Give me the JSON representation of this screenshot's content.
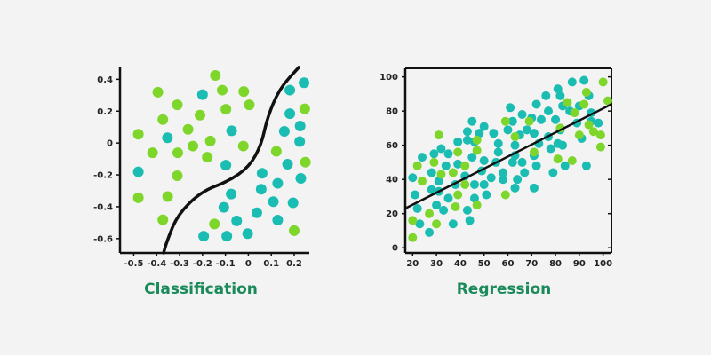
{
  "colors": {
    "teal": "#1bbdb3",
    "green": "#7ed62a",
    "line": "#111111",
    "caption": "#1a8a5a"
  },
  "chart_data": [
    {
      "type": "scatter",
      "title": "Classification",
      "xlim": [
        -0.56,
        0.266
      ],
      "ylim": [
        -0.69,
        0.48
      ],
      "xticks": [
        -0.5,
        -0.4,
        -0.3,
        -0.2,
        -0.1,
        0,
        0.1,
        0.2
      ],
      "xtick_labels": [
        "-0.5",
        "-0.4",
        "-0.3",
        "-0.2",
        "-0.1",
        "0",
        "0.1",
        "0.2"
      ],
      "yticks": [
        0.4,
        0.2,
        0,
        -0.2,
        -0.4,
        -0.6
      ],
      "ytick_labels": [
        "0.4",
        "0.2",
        "0",
        "-0.2",
        "-0.4",
        "-0.6"
      ],
      "grid": false,
      "series": [
        {
          "color": "green",
          "points": [
            [
              -0.144,
              0.424
            ],
            [
              -0.395,
              0.319
            ],
            [
              -0.114,
              0.332
            ],
            [
              -0.02,
              0.323
            ],
            [
              -0.31,
              0.24
            ],
            [
              0.004,
              0.24
            ],
            [
              -0.098,
              0.212
            ],
            [
              -0.211,
              0.175
            ],
            [
              -0.373,
              0.147
            ],
            [
              -0.48,
              0.055
            ],
            [
              -0.263,
              0.086
            ],
            [
              -0.166,
              0.013
            ],
            [
              -0.242,
              -0.019
            ],
            [
              -0.022,
              -0.019
            ],
            [
              -0.418,
              -0.061
            ],
            [
              -0.308,
              -0.061
            ],
            [
              -0.179,
              -0.089
            ],
            [
              -0.31,
              -0.205
            ],
            [
              -0.48,
              -0.344
            ],
            [
              -0.352,
              -0.336
            ],
            [
              -0.373,
              -0.482
            ],
            [
              -0.148,
              -0.508
            ],
            [
              0.122,
              -0.052
            ],
            [
              0.246,
              0.215
            ],
            [
              0.249,
              -0.12
            ],
            [
              0.2,
              -0.55
            ]
          ]
        },
        {
          "color": "teal",
          "points": [
            [
              -0.2,
              0.304
            ],
            [
              -0.353,
              0.033
            ],
            [
              -0.073,
              0.077
            ],
            [
              -0.098,
              -0.139
            ],
            [
              -0.48,
              -0.181
            ],
            [
              0.243,
              0.378
            ],
            [
              0.181,
              0.332
            ],
            [
              0.181,
              0.184
            ],
            [
              0.226,
              0.107
            ],
            [
              0.157,
              0.073
            ],
            [
              0.224,
              0.009
            ],
            [
              0.171,
              -0.133
            ],
            [
              0.229,
              -0.222
            ],
            [
              0.06,
              -0.19
            ],
            [
              0.128,
              -0.253
            ],
            [
              0.056,
              -0.29
            ],
            [
              -0.075,
              -0.32
            ],
            [
              0.109,
              -0.368
            ],
            [
              0.195,
              -0.375
            ],
            [
              -0.107,
              -0.404
            ],
            [
              0.037,
              -0.438
            ],
            [
              0.128,
              -0.484
            ],
            [
              -0.051,
              -0.489
            ],
            [
              -0.003,
              -0.569
            ],
            [
              -0.094,
              -0.585
            ],
            [
              -0.195,
              -0.585
            ]
          ]
        }
      ],
      "decision_boundary": [
        [
          -0.37,
          -0.69
        ],
        [
          -0.356,
          -0.62
        ],
        [
          -0.31,
          -0.453
        ],
        [
          -0.206,
          -0.305
        ],
        [
          -0.088,
          -0.241
        ],
        [
          0.004,
          -0.149
        ],
        [
          0.057,
          -0.01
        ],
        [
          0.082,
          0.156
        ],
        [
          0.135,
          0.34
        ],
        [
          0.22,
          0.475
        ]
      ]
    },
    {
      "type": "scatter",
      "title": "Regression",
      "xlim": [
        16.9,
        103.5
      ],
      "ylim": [
        -3,
        105
      ],
      "xticks": [
        20,
        30,
        40,
        50,
        60,
        70,
        80,
        90,
        100
      ],
      "xtick_labels": [
        "20",
        "30",
        "40",
        "50",
        "60",
        "70",
        "80",
        "90",
        "100"
      ],
      "yticks": [
        0,
        20,
        40,
        60,
        80,
        100
      ],
      "ytick_labels": [
        "0",
        "20",
        "40",
        "60",
        "80",
        "100"
      ],
      "grid": false,
      "series": [
        {
          "color": "teal",
          "points": [
            [
              20,
              41
            ],
            [
              21,
              31
            ],
            [
              22,
              23
            ],
            [
              23,
              14
            ],
            [
              24,
              53
            ],
            [
              27,
              9
            ],
            [
              28,
              44
            ],
            [
              28,
              34
            ],
            [
              29,
              55
            ],
            [
              30,
              25
            ],
            [
              31,
              39
            ],
            [
              31,
              33
            ],
            [
              32,
              58
            ],
            [
              33,
              22
            ],
            [
              34,
              48
            ],
            [
              35,
              29
            ],
            [
              35,
              55
            ],
            [
              37,
              14
            ],
            [
              38,
              37
            ],
            [
              39,
              49
            ],
            [
              39,
              62
            ],
            [
              42,
              42
            ],
            [
              43,
              22
            ],
            [
              43,
              63
            ],
            [
              43,
              68
            ],
            [
              44,
              16
            ],
            [
              45,
              74
            ],
            [
              45,
              53
            ],
            [
              46,
              37
            ],
            [
              46,
              29
            ],
            [
              46,
              62
            ],
            [
              48,
              67
            ],
            [
              49,
              45
            ],
            [
              50,
              51
            ],
            [
              50,
              37
            ],
            [
              50,
              71
            ],
            [
              51,
              31
            ],
            [
              53,
              41
            ],
            [
              54,
              67
            ],
            [
              55,
              50
            ],
            [
              56,
              56
            ],
            [
              56,
              61
            ],
            [
              58,
              40
            ],
            [
              58,
              44
            ],
            [
              60,
              69
            ],
            [
              61,
              82
            ],
            [
              62,
              50
            ],
            [
              62,
              74
            ],
            [
              63,
              60
            ],
            [
              63,
              35
            ],
            [
              63,
              54
            ],
            [
              64,
              40
            ],
            [
              65,
              66
            ],
            [
              66,
              78
            ],
            [
              66,
              50
            ],
            [
              67,
              44
            ],
            [
              68,
              69
            ],
            [
              70,
              76
            ],
            [
              71,
              67
            ],
            [
              71,
              54
            ],
            [
              71,
              35
            ],
            [
              72,
              84
            ],
            [
              72,
              48
            ],
            [
              73,
              61
            ],
            [
              74,
              75
            ],
            [
              76,
              89
            ],
            [
              77,
              65
            ],
            [
              77,
              80
            ],
            [
              78,
              58
            ],
            [
              79,
              44
            ],
            [
              80,
              75
            ],
            [
              81,
              93
            ],
            [
              81,
              61
            ],
            [
              82,
              69
            ],
            [
              82,
              89
            ],
            [
              83,
              83
            ],
            [
              83,
              60
            ],
            [
              84,
              48
            ],
            [
              86,
              80
            ],
            [
              87,
              97
            ],
            [
              89,
              73
            ],
            [
              90,
              83
            ],
            [
              91,
              64
            ],
            [
              92,
              98
            ],
            [
              93,
              48
            ],
            [
              94,
              89
            ],
            [
              95,
              79
            ],
            [
              95,
              74
            ],
            [
              98,
              73
            ]
          ]
        },
        {
          "color": "green",
          "points": [
            [
              20,
              16
            ],
            [
              20,
              6
            ],
            [
              22,
              48
            ],
            [
              24,
              39
            ],
            [
              27,
              20
            ],
            [
              29,
              50
            ],
            [
              30,
              14
            ],
            [
              31,
              66
            ],
            [
              32,
              43
            ],
            [
              37,
              44
            ],
            [
              38,
              24
            ],
            [
              39,
              56
            ],
            [
              39,
              31
            ],
            [
              42,
              48
            ],
            [
              42,
              37
            ],
            [
              47,
              63
            ],
            [
              47,
              57
            ],
            [
              47,
              25
            ],
            [
              59,
              74
            ],
            [
              59,
              31
            ],
            [
              63,
              65
            ],
            [
              69,
              74
            ],
            [
              71,
              56
            ],
            [
              81,
              52
            ],
            [
              82,
              70
            ],
            [
              85,
              85
            ],
            [
              87,
              51
            ],
            [
              88,
              79
            ],
            [
              90,
              66
            ],
            [
              92,
              84
            ],
            [
              93,
              91
            ],
            [
              94,
              72
            ],
            [
              96,
              68
            ],
            [
              99,
              59
            ],
            [
              99,
              66
            ],
            [
              100,
              97
            ],
            [
              102,
              86
            ]
          ]
        }
      ],
      "regression_line": [
        [
          16.9,
          23
        ],
        [
          103.5,
          84
        ]
      ]
    }
  ],
  "captions": {
    "left": "Classification",
    "right": "Regression"
  }
}
